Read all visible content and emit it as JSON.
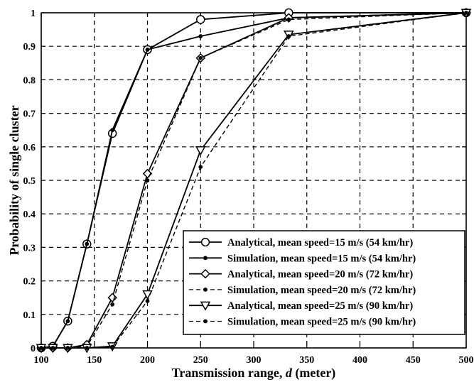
{
  "chart_data": {
    "type": "line",
    "title": "",
    "xlabel": {
      "prefix": "Transmission range, ",
      "italic": "d",
      "suffix": " (meter)"
    },
    "ylabel": "Probability of single cluster",
    "xlim": [
      100,
      500
    ],
    "ylim": [
      0,
      1
    ],
    "xticks": [
      100,
      150,
      200,
      250,
      300,
      350,
      400,
      450,
      500
    ],
    "yticks": [
      0,
      0.1,
      0.2,
      0.3,
      0.4,
      0.5,
      0.6,
      0.7,
      0.8,
      0.9,
      1
    ],
    "ytick_labels": [
      "0",
      "0.1",
      "0.2",
      "0.3",
      "0.4",
      "0.5",
      "0.6",
      "0.7",
      "0.8",
      "0.9",
      "1"
    ],
    "grid": true,
    "legend_position": "bottom-right",
    "series": [
      {
        "name": "Analytical, mean speed=15 m/s (54 km/hr)",
        "style": "solid",
        "marker": "circle",
        "points": [
          [
            100,
            0
          ],
          [
            111,
            0.005
          ],
          [
            125,
            0.08
          ],
          [
            143,
            0.31
          ],
          [
            167,
            0.64
          ],
          [
            200,
            0.89
          ],
          [
            250,
            0.98
          ],
          [
            333,
            1.0
          ],
          [
            500,
            1.0
          ]
        ]
      },
      {
        "name": "Simulation, mean speed=15 m/s (54 km/hr)",
        "style": "solid",
        "marker": "dot",
        "points": [
          [
            100,
            0
          ],
          [
            111,
            0.005
          ],
          [
            125,
            0.08
          ],
          [
            143,
            0.31
          ],
          [
            167,
            0.65
          ],
          [
            200,
            0.89
          ],
          [
            250,
            0.93
          ],
          [
            333,
            0.985
          ],
          [
            500,
            1.0
          ]
        ]
      },
      {
        "name": "Analytical, mean speed=20 m/s (72 km/hr)",
        "style": "solid",
        "marker": "diamond",
        "points": [
          [
            100,
            0
          ],
          [
            111,
            0
          ],
          [
            125,
            0
          ],
          [
            143,
            0.01
          ],
          [
            167,
            0.15
          ],
          [
            200,
            0.52
          ],
          [
            250,
            0.865
          ],
          [
            333,
            0.985
          ],
          [
            500,
            1.0
          ]
        ]
      },
      {
        "name": "Simulation, mean speed=20 m/s (72 km/hr)",
        "style": "dashed",
        "marker": "dot",
        "points": [
          [
            100,
            0
          ],
          [
            111,
            0
          ],
          [
            125,
            0
          ],
          [
            143,
            0.005
          ],
          [
            167,
            0.13
          ],
          [
            200,
            0.5
          ],
          [
            250,
            0.865
          ],
          [
            333,
            0.98
          ],
          [
            500,
            1.0
          ]
        ]
      },
      {
        "name": "Analytical, mean speed=25 m/s (90 km/hr)",
        "style": "solid",
        "marker": "triangle-down",
        "points": [
          [
            100,
            0
          ],
          [
            111,
            0
          ],
          [
            125,
            0
          ],
          [
            143,
            0
          ],
          [
            167,
            0.005
          ],
          [
            200,
            0.16
          ],
          [
            250,
            0.59
          ],
          [
            333,
            0.935
          ],
          [
            500,
            1.0
          ]
        ]
      },
      {
        "name": "Simulation, mean speed=25 m/s (90 km/hr)",
        "style": "dashed",
        "marker": "dot",
        "points": [
          [
            100,
            0
          ],
          [
            111,
            0
          ],
          [
            125,
            0
          ],
          [
            143,
            0
          ],
          [
            167,
            0.003
          ],
          [
            200,
            0.14
          ],
          [
            250,
            0.54
          ],
          [
            333,
            0.93
          ],
          [
            500,
            1.0
          ]
        ]
      }
    ]
  }
}
